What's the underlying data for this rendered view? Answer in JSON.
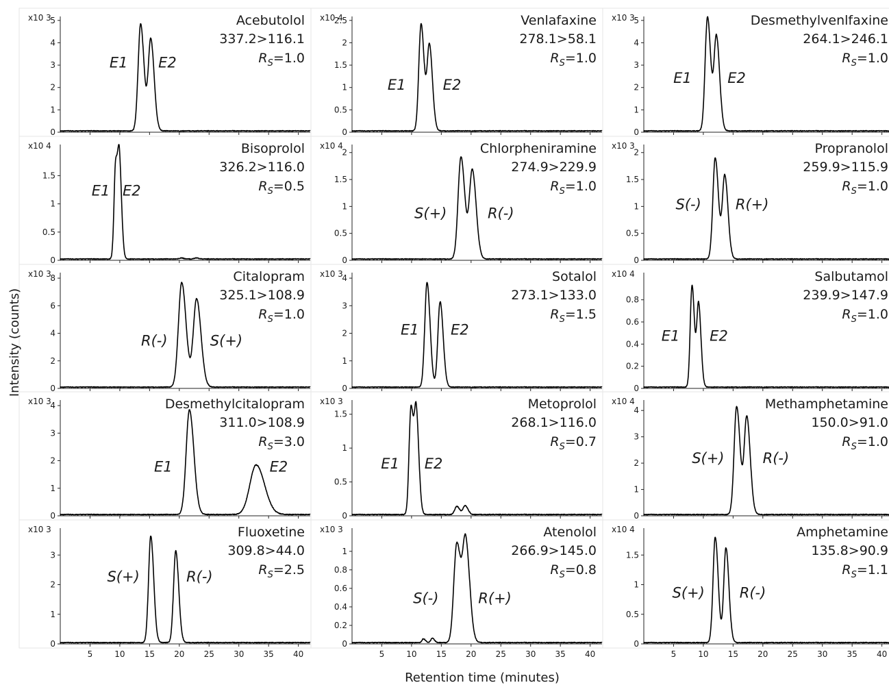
{
  "figure": {
    "ylabel": "Intensity (counts)",
    "xlabel": "Retention time (minutes)"
  },
  "chart_data": [
    {
      "type": "line",
      "name": "Acebutolol",
      "transition": "337.2>116.1",
      "rs": "=1.0",
      "exponent": "x10 3",
      "xlim": [
        0,
        42
      ],
      "ylim": [
        0,
        5.3
      ],
      "yticks": [
        0,
        1,
        2,
        3,
        4,
        5
      ],
      "ytick_labels": [
        "0",
        "1",
        "2",
        "3",
        "4",
        "5"
      ],
      "peaks": [
        {
          "rt": 13.5,
          "height": 4.8,
          "sigma": 0.42
        },
        {
          "rt": 15.2,
          "height": 4.1,
          "sigma": 0.42
        }
      ],
      "labels": [
        {
          "text": "E1",
          "x": 9.8,
          "y": 2.9
        },
        {
          "text": "E2",
          "x": 18.0,
          "y": 2.9
        }
      ]
    },
    {
      "type": "line",
      "name": "Venlafaxine",
      "transition": "278.1>58.1",
      "rs": "=1.0",
      "exponent": "x10 4",
      "xlim": [
        0,
        42
      ],
      "ylim": [
        0,
        2.65
      ],
      "yticks": [
        0,
        0.5,
        1,
        1.5,
        2,
        2.5
      ],
      "ytick_labels": [
        "0",
        "0.5",
        "1",
        "1.5",
        "2",
        "2.5"
      ],
      "peaks": [
        {
          "rt": 11.6,
          "height": 2.4,
          "sigma": 0.38
        },
        {
          "rt": 13.0,
          "height": 1.9,
          "sigma": 0.38
        }
      ],
      "labels": [
        {
          "text": "E1",
          "x": 7.5,
          "y": 0.95
        },
        {
          "text": "E2",
          "x": 16.8,
          "y": 0.95
        }
      ]
    },
    {
      "type": "line",
      "name": "Desmethylvenlfaxine",
      "transition": "264.1>246.1",
      "rs": "=1.0",
      "exponent": "x10 3",
      "xlim": [
        0,
        42
      ],
      "ylim": [
        0,
        5.3
      ],
      "yticks": [
        0,
        1,
        2,
        3,
        4,
        5
      ],
      "ytick_labels": [
        "0",
        "1",
        "2",
        "3",
        "4",
        "5"
      ],
      "peaks": [
        {
          "rt": 10.7,
          "height": 5.1,
          "sigma": 0.4
        },
        {
          "rt": 12.2,
          "height": 4.2,
          "sigma": 0.4
        }
      ],
      "labels": [
        {
          "text": "E1",
          "x": 6.5,
          "y": 2.2
        },
        {
          "text": "E2",
          "x": 15.6,
          "y": 2.2
        }
      ]
    },
    {
      "type": "line",
      "name": "Bisoprolol",
      "transition": "326.2>116.0",
      "rs": "=0.5",
      "exponent": "x10 4",
      "xlim": [
        0,
        42
      ],
      "ylim": [
        0,
        2.1
      ],
      "yticks": [
        0,
        0.5,
        1,
        1.5
      ],
      "ytick_labels": [
        "0",
        "0.5",
        "1",
        "1.5"
      ],
      "peaks": [
        {
          "rt": 9.3,
          "height": 1.68,
          "sigma": 0.27
        },
        {
          "rt": 9.95,
          "height": 1.6,
          "sigma": 0.27
        },
        {
          "rt": 20.3,
          "height": 0.02,
          "sigma": 0.3
        },
        {
          "rt": 22.8,
          "height": 0.02,
          "sigma": 0.3
        }
      ],
      "labels": [
        {
          "text": "E1",
          "x": 6.8,
          "y": 1.15
        },
        {
          "text": "E2",
          "x": 12.0,
          "y": 1.15
        }
      ]
    },
    {
      "type": "line",
      "name": "Chlorpheniramine",
      "transition": "274.9>229.9",
      "rs": "=1.0",
      "exponent": "x10 4",
      "xlim": [
        0,
        42
      ],
      "ylim": [
        0,
        2.2
      ],
      "yticks": [
        0,
        0.5,
        1,
        1.5,
        2
      ],
      "ytick_labels": [
        "0",
        "0.5",
        "1",
        "1.5",
        "2"
      ],
      "peaks": [
        {
          "rt": 18.3,
          "height": 1.9,
          "sigma": 0.48
        },
        {
          "rt": 20.2,
          "height": 1.65,
          "sigma": 0.48
        }
      ],
      "labels": [
        {
          "text": "S(+)",
          "x": 13.2,
          "y": 0.78
        },
        {
          "text": "R(-)",
          "x": 25.0,
          "y": 0.78
        }
      ]
    },
    {
      "type": "line",
      "name": "Propranolol",
      "transition": "259.9>115.9",
      "rs": "=1.0",
      "exponent": "x10 3",
      "xlim": [
        0,
        42
      ],
      "ylim": [
        0,
        2.2
      ],
      "yticks": [
        0,
        0.5,
        1,
        1.5,
        2
      ],
      "ytick_labels": [
        "0",
        "0.5",
        "1",
        "1.5",
        "2"
      ],
      "peaks": [
        {
          "rt": 12.0,
          "height": 1.88,
          "sigma": 0.4
        },
        {
          "rt": 13.6,
          "height": 1.55,
          "sigma": 0.4
        }
      ],
      "labels": [
        {
          "text": "S(-)",
          "x": 7.5,
          "y": 0.95
        },
        {
          "text": "R(+)",
          "x": 18.2,
          "y": 0.95
        }
      ]
    },
    {
      "type": "line",
      "name": "Citalopram",
      "transition": "325.1>108.9",
      "rs": "=1.0",
      "exponent": "x10 3",
      "xlim": [
        0,
        42
      ],
      "ylim": [
        0,
        8.6
      ],
      "yticks": [
        0,
        2,
        4,
        6,
        8
      ],
      "ytick_labels": [
        "0",
        "2",
        "4",
        "6",
        "8"
      ],
      "peaks": [
        {
          "rt": 20.4,
          "height": 7.6,
          "sigma": 0.55
        },
        {
          "rt": 22.9,
          "height": 6.4,
          "sigma": 0.55
        }
      ],
      "labels": [
        {
          "text": "R(-)",
          "x": 15.8,
          "y": 3.1
        },
        {
          "text": "S(+)",
          "x": 27.9,
          "y": 3.1
        }
      ]
    },
    {
      "type": "line",
      "name": "Sotalol",
      "transition": "273.1>133.0",
      "rs": "=1.5",
      "exponent": "x10 3",
      "xlim": [
        0,
        42
      ],
      "ylim": [
        0,
        4.3
      ],
      "yticks": [
        0,
        1,
        2,
        3,
        4
      ],
      "ytick_labels": [
        "0",
        "1",
        "2",
        "3",
        "4"
      ],
      "peaks": [
        {
          "rt": 12.6,
          "height": 3.8,
          "sigma": 0.38
        },
        {
          "rt": 14.8,
          "height": 3.1,
          "sigma": 0.38
        }
      ],
      "labels": [
        {
          "text": "E1",
          "x": 9.7,
          "y": 1.95
        },
        {
          "text": "E2",
          "x": 18.1,
          "y": 1.95
        }
      ]
    },
    {
      "type": "line",
      "name": "Salbutamol",
      "transition": "239.9>147.9",
      "rs": "=1.0",
      "exponent": "x10 4",
      "xlim": [
        0,
        42
      ],
      "ylim": [
        0,
        1.07
      ],
      "yticks": [
        0,
        0.2,
        0.4,
        0.6,
        0.8
      ],
      "ytick_labels": [
        "0",
        "0.2",
        "0.4",
        "0.6",
        "0.8"
      ],
      "peaks": [
        {
          "rt": 8.1,
          "height": 0.92,
          "sigma": 0.3
        },
        {
          "rt": 9.2,
          "height": 0.75,
          "sigma": 0.3
        }
      ],
      "labels": [
        {
          "text": "E1",
          "x": 4.5,
          "y": 0.43
        },
        {
          "text": "E2",
          "x": 12.6,
          "y": 0.43
        }
      ]
    },
    {
      "type": "line",
      "name": "Desmethylcitalopram",
      "transition": "311.0>108.9",
      "rs": "=3.0",
      "exponent": "x10 3",
      "xlim": [
        0,
        42
      ],
      "ylim": [
        0,
        4.3
      ],
      "yticks": [
        0,
        1,
        2,
        3,
        4
      ],
      "ytick_labels": [
        "0",
        "1",
        "2",
        "3",
        "4"
      ],
      "peaks": [
        {
          "rt": 21.7,
          "height": 3.8,
          "sigma": 0.55
        },
        {
          "rt": 32.9,
          "height": 1.8,
          "sigma": 1.05
        }
      ],
      "labels": [
        {
          "text": "E1",
          "x": 17.3,
          "y": 1.6
        },
        {
          "text": "E2",
          "x": 36.7,
          "y": 1.6
        }
      ]
    },
    {
      "type": "line",
      "name": "Metoprolol",
      "transition": "268.1>116.0",
      "rs": "=0.7",
      "exponent": "x10 3",
      "xlim": [
        0,
        42
      ],
      "ylim": [
        0,
        1.75
      ],
      "yticks": [
        0,
        0.5,
        1,
        1.5
      ],
      "ytick_labels": [
        "0",
        "0.5",
        "1",
        "1.5"
      ],
      "peaks": [
        {
          "rt": 9.9,
          "height": 1.58,
          "sigma": 0.32
        },
        {
          "rt": 10.8,
          "height": 1.45,
          "sigma": 0.32
        },
        {
          "rt": 17.6,
          "height": 0.12,
          "sigma": 0.35
        },
        {
          "rt": 19.0,
          "height": 0.13,
          "sigma": 0.35
        }
      ],
      "labels": [
        {
          "text": "E1",
          "x": 6.4,
          "y": 0.7
        },
        {
          "text": "E2",
          "x": 13.7,
          "y": 0.7
        }
      ]
    },
    {
      "type": "line",
      "name": "Methamphetamine",
      "transition": "150.0>91.0",
      "rs": "=1.0",
      "exponent": "x10 4",
      "xlim": [
        0,
        42
      ],
      "ylim": [
        0,
        4.5
      ],
      "yticks": [
        0,
        1,
        2,
        3,
        4
      ],
      "ytick_labels": [
        "0",
        "1",
        "2",
        "3",
        "4"
      ],
      "peaks": [
        {
          "rt": 15.6,
          "height": 4.1,
          "sigma": 0.43
        },
        {
          "rt": 17.3,
          "height": 3.7,
          "sigma": 0.43
        }
      ],
      "labels": [
        {
          "text": "S(+)",
          "x": 10.8,
          "y": 2.0
        },
        {
          "text": "R(-)",
          "x": 22.2,
          "y": 2.0
        }
      ]
    },
    {
      "type": "line",
      "name": "Fluoxetine",
      "transition": "309.8>44.0",
      "rs": "=2.5",
      "exponent": "x10 3",
      "xlim": [
        0,
        42
      ],
      "ylim": [
        0,
        4.0
      ],
      "yticks": [
        0,
        1,
        2,
        3
      ],
      "ytick_labels": [
        "0",
        "1",
        "2",
        "3"
      ],
      "peaks": [
        {
          "rt": 15.2,
          "height": 3.6,
          "sigma": 0.37
        },
        {
          "rt": 19.4,
          "height": 3.1,
          "sigma": 0.37
        }
      ],
      "labels": [
        {
          "text": "S(+)",
          "x": 10.6,
          "y": 2.1
        },
        {
          "text": "R(-)",
          "x": 23.4,
          "y": 2.1
        }
      ]
    },
    {
      "type": "line",
      "name": "Atenolol",
      "transition": "266.9>145.0",
      "rs": "=0.8",
      "exponent": "x10 3",
      "xlim": [
        0,
        42
      ],
      "ylim": [
        0,
        1.28
      ],
      "yticks": [
        0,
        0.2,
        0.4,
        0.6,
        0.8,
        1
      ],
      "ytick_labels": [
        "0",
        "0.2",
        "0.4",
        "0.6",
        "0.8",
        "1"
      ],
      "peaks": [
        {
          "rt": 17.6,
          "height": 1.07,
          "sigma": 0.5
        },
        {
          "rt": 19.1,
          "height": 1.07,
          "sigma": 0.5
        },
        {
          "rt": 12.0,
          "height": 0.04,
          "sigma": 0.25
        },
        {
          "rt": 13.5,
          "height": 0.05,
          "sigma": 0.25
        }
      ],
      "labels": [
        {
          "text": "S(-)",
          "x": 12.4,
          "y": 0.44
        },
        {
          "text": "R(+)",
          "x": 24.0,
          "y": 0.44
        }
      ]
    },
    {
      "type": "line",
      "name": "Amphetamine",
      "transition": "135.8>90.9",
      "rs": "=1.1",
      "exponent": "x10 4",
      "xlim": [
        0,
        42
      ],
      "ylim": [
        0,
        2.0
      ],
      "yticks": [
        0,
        0.5,
        1,
        1.5
      ],
      "ytick_labels": [
        "0",
        "0.5",
        "1",
        "1.5"
      ],
      "peaks": [
        {
          "rt": 12.0,
          "height": 1.78,
          "sigma": 0.37
        },
        {
          "rt": 13.8,
          "height": 1.6,
          "sigma": 0.37
        }
      ],
      "labels": [
        {
          "text": "S(+)",
          "x": 7.5,
          "y": 0.78
        },
        {
          "text": "R(-)",
          "x": 18.3,
          "y": 0.78
        }
      ]
    }
  ],
  "x_axis": {
    "ticks": [
      5,
      10,
      15,
      20,
      25,
      30,
      35,
      40
    ],
    "tick_labels": [
      "5",
      "10",
      "15",
      "20",
      "25",
      "30",
      "35",
      "40"
    ]
  }
}
